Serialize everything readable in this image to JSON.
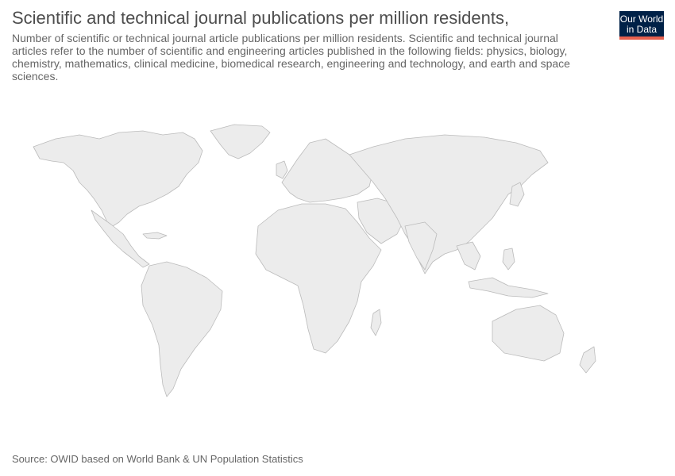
{
  "header": {
    "title": "Scientific and technical journal publications per million residents,",
    "subtitle": "Number of scientific or technical journal article publications per million residents. Scientific and technical journal articles refer to the number of scientific and engineering articles published in the following fields: physics, biology, chemistry, mathematics, clinical medicine, biomedical research, engineering and technology, and earth and space sciences."
  },
  "logo": {
    "line1": "Our World",
    "line2": "in Data",
    "bg_color": "#002147",
    "accent_color": "#e5604e"
  },
  "map": {
    "land_color": "#ececec",
    "border_color": "#bbbbbb"
  },
  "footer": {
    "source": "Source: OWID based on World Bank & UN Population Statistics"
  }
}
